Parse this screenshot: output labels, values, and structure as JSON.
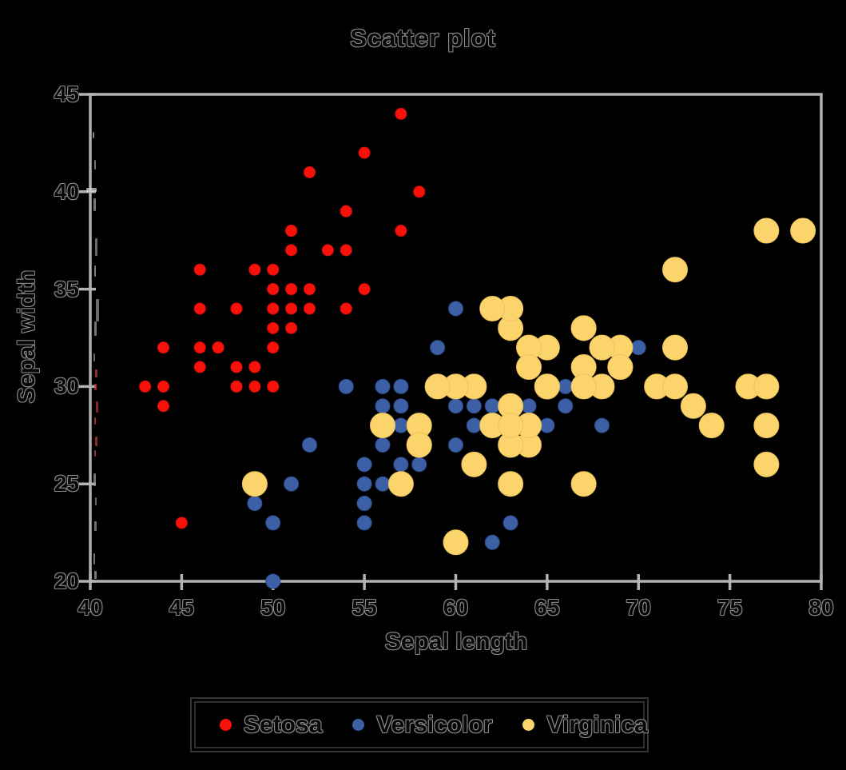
{
  "title": "Scatter plot",
  "chart_data": {
    "type": "scatter",
    "title": "Scatter plot",
    "xlabel": "Sepal length",
    "ylabel": "Sepal width",
    "xlim": [
      40,
      80
    ],
    "ylim": [
      20,
      45
    ],
    "x_ticks": [
      40,
      45,
      50,
      55,
      60,
      65,
      70,
      75,
      80
    ],
    "y_ticks": [
      20,
      25,
      30,
      35,
      40,
      45
    ],
    "grid": false,
    "legend_position": "bottom",
    "axis_color": "#b2b2b2",
    "series": [
      {
        "name": "Setosa",
        "color": "#f81109",
        "edge_color": "#d90d0d",
        "marker_radius": 7,
        "points": [
          [
            51,
            35
          ],
          [
            49,
            30
          ],
          [
            47,
            32
          ],
          [
            46,
            31
          ],
          [
            50,
            36
          ],
          [
            54,
            39
          ],
          [
            46,
            34
          ],
          [
            50,
            34
          ],
          [
            44,
            29
          ],
          [
            49,
            31
          ],
          [
            54,
            37
          ],
          [
            48,
            34
          ],
          [
            48,
            30
          ],
          [
            43,
            30
          ],
          [
            58,
            40
          ],
          [
            57,
            44
          ],
          [
            54,
            39
          ],
          [
            51,
            35
          ],
          [
            57,
            38
          ],
          [
            51,
            38
          ],
          [
            54,
            34
          ],
          [
            51,
            37
          ],
          [
            46,
            36
          ],
          [
            51,
            33
          ],
          [
            48,
            34
          ],
          [
            50,
            30
          ],
          [
            50,
            34
          ],
          [
            52,
            35
          ],
          [
            52,
            34
          ],
          [
            47,
            32
          ],
          [
            48,
            31
          ],
          [
            54,
            34
          ],
          [
            52,
            41
          ],
          [
            55,
            42
          ],
          [
            49,
            31
          ],
          [
            50,
            32
          ],
          [
            55,
            35
          ],
          [
            49,
            36
          ],
          [
            44,
            30
          ],
          [
            51,
            34
          ],
          [
            50,
            35
          ],
          [
            45,
            23
          ],
          [
            44,
            32
          ],
          [
            50,
            35
          ],
          [
            51,
            38
          ],
          [
            48,
            30
          ],
          [
            51,
            38
          ],
          [
            46,
            32
          ],
          [
            53,
            37
          ],
          [
            50,
            33
          ]
        ]
      },
      {
        "name": "Versicolor",
        "color": "#3c5fa5",
        "edge_color": "#2c4c8e",
        "marker_radius": 9,
        "points": [
          [
            70,
            32
          ],
          [
            64,
            32
          ],
          [
            69,
            31
          ],
          [
            55,
            23
          ],
          [
            65,
            28
          ],
          [
            57,
            28
          ],
          [
            63,
            33
          ],
          [
            49,
            24
          ],
          [
            66,
            29
          ],
          [
            52,
            27
          ],
          [
            50,
            20
          ],
          [
            59,
            30
          ],
          [
            60,
            22
          ],
          [
            61,
            29
          ],
          [
            56,
            29
          ],
          [
            67,
            31
          ],
          [
            56,
            30
          ],
          [
            58,
            27
          ],
          [
            62,
            22
          ],
          [
            56,
            25
          ],
          [
            59,
            32
          ],
          [
            61,
            28
          ],
          [
            63,
            25
          ],
          [
            61,
            28
          ],
          [
            64,
            29
          ],
          [
            66,
            30
          ],
          [
            68,
            28
          ],
          [
            67,
            30
          ],
          [
            60,
            29
          ],
          [
            57,
            26
          ],
          [
            55,
            24
          ],
          [
            55,
            24
          ],
          [
            58,
            27
          ],
          [
            60,
            27
          ],
          [
            54,
            30
          ],
          [
            60,
            34
          ],
          [
            67,
            31
          ],
          [
            63,
            23
          ],
          [
            56,
            30
          ],
          [
            55,
            25
          ],
          [
            55,
            26
          ],
          [
            61,
            30
          ],
          [
            58,
            26
          ],
          [
            50,
            23
          ],
          [
            56,
            27
          ],
          [
            57,
            30
          ],
          [
            57,
            29
          ],
          [
            62,
            29
          ],
          [
            51,
            25
          ],
          [
            57,
            28
          ]
        ]
      },
      {
        "name": "Virginica",
        "color": "#fbd46c",
        "edge_color": "#eec25a",
        "marker_radius": 15.5,
        "points": [
          [
            63,
            33
          ],
          [
            58,
            27
          ],
          [
            71,
            30
          ],
          [
            63,
            29
          ],
          [
            65,
            30
          ],
          [
            76,
            30
          ],
          [
            49,
            25
          ],
          [
            73,
            29
          ],
          [
            67,
            25
          ],
          [
            72,
            36
          ],
          [
            65,
            32
          ],
          [
            64,
            27
          ],
          [
            68,
            30
          ],
          [
            57,
            25
          ],
          [
            58,
            28
          ],
          [
            64,
            32
          ],
          [
            65,
            30
          ],
          [
            77,
            38
          ],
          [
            77,
            26
          ],
          [
            60,
            22
          ],
          [
            69,
            32
          ],
          [
            56,
            28
          ],
          [
            77,
            28
          ],
          [
            63,
            27
          ],
          [
            67,
            33
          ],
          [
            72,
            32
          ],
          [
            62,
            28
          ],
          [
            61,
            30
          ],
          [
            64,
            28
          ],
          [
            72,
            30
          ],
          [
            74,
            28
          ],
          [
            79,
            38
          ],
          [
            64,
            28
          ],
          [
            63,
            28
          ],
          [
            61,
            26
          ],
          [
            77,
            30
          ],
          [
            63,
            34
          ],
          [
            64,
            31
          ],
          [
            60,
            30
          ],
          [
            69,
            31
          ],
          [
            67,
            31
          ],
          [
            69,
            31
          ],
          [
            58,
            27
          ],
          [
            68,
            32
          ],
          [
            67,
            33
          ],
          [
            67,
            30
          ],
          [
            63,
            25
          ],
          [
            65,
            30
          ],
          [
            62,
            34
          ],
          [
            59,
            30
          ]
        ]
      }
    ]
  },
  "legend": {
    "items": [
      {
        "label": "Setosa"
      },
      {
        "label": "Versicolor"
      },
      {
        "label": "Virginica"
      }
    ]
  }
}
